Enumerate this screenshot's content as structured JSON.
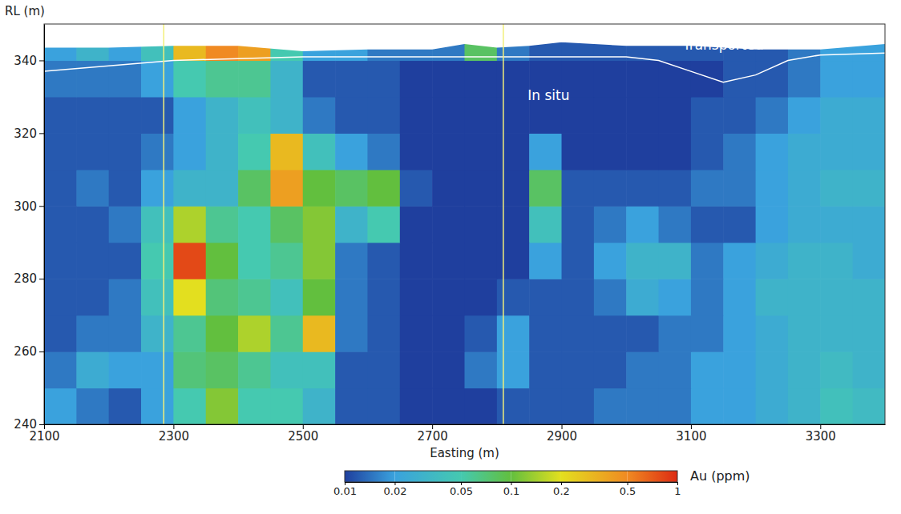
{
  "chart_data": {
    "type": "heatmap",
    "x_label": "Easting (m)",
    "y_label": "RL (m)",
    "xlim": [
      2100,
      3400
    ],
    "ylim": [
      240,
      350
    ],
    "xticks": [
      2100,
      2300,
      2500,
      2700,
      2900,
      3100,
      3300
    ],
    "yticks": [
      240,
      260,
      280,
      300,
      320,
      340
    ],
    "x": [
      2100,
      2150,
      2200,
      2250,
      2300,
      2350,
      2400,
      2450,
      2500,
      2550,
      2600,
      2650,
      2700,
      2750,
      2800,
      2850,
      2900,
      2950,
      3000,
      3050,
      3100,
      3150,
      3200,
      3250,
      3300,
      3350,
      3400
    ],
    "y": [
      240,
      250,
      260,
      270,
      280,
      290,
      300,
      310,
      320,
      330,
      340,
      345
    ],
    "z": [
      [
        0.02,
        0.015,
        0.012,
        0.02,
        0.05,
        0.12,
        0.05,
        0.05,
        0.03,
        0.012,
        0.012,
        0.01,
        0.01,
        0.01,
        0.012,
        0.012,
        0.012,
        0.015,
        0.015,
        0.015,
        0.02,
        0.02,
        0.025,
        0.03,
        0.04,
        0.035
      ],
      [
        0.015,
        0.025,
        0.02,
        0.02,
        0.07,
        0.08,
        0.06,
        0.04,
        0.04,
        0.012,
        0.012,
        0.01,
        0.01,
        0.015,
        0.02,
        0.012,
        0.012,
        0.012,
        0.015,
        0.015,
        0.02,
        0.02,
        0.025,
        0.03,
        0.035,
        0.03
      ],
      [
        0.012,
        0.015,
        0.015,
        0.03,
        0.06,
        0.1,
        0.15,
        0.06,
        0.3,
        0.015,
        0.012,
        0.01,
        0.01,
        0.012,
        0.02,
        0.012,
        0.012,
        0.012,
        0.012,
        0.015,
        0.015,
        0.02,
        0.025,
        0.03,
        0.03,
        0.03
      ],
      [
        0.012,
        0.012,
        0.015,
        0.04,
        0.2,
        0.07,
        0.06,
        0.04,
        0.1,
        0.015,
        0.012,
        0.01,
        0.01,
        0.01,
        0.012,
        0.012,
        0.012,
        0.015,
        0.025,
        0.02,
        0.015,
        0.02,
        0.03,
        0.03,
        0.03,
        0.03
      ],
      [
        0.012,
        0.012,
        0.012,
        0.05,
        0.8,
        0.1,
        0.05,
        0.06,
        0.12,
        0.015,
        0.012,
        0.01,
        0.01,
        0.01,
        0.01,
        0.02,
        0.012,
        0.02,
        0.03,
        0.03,
        0.015,
        0.02,
        0.025,
        0.03,
        0.03,
        0.025
      ],
      [
        0.012,
        0.012,
        0.015,
        0.04,
        0.15,
        0.06,
        0.05,
        0.08,
        0.12,
        0.03,
        0.05,
        0.01,
        0.01,
        0.01,
        0.01,
        0.04,
        0.012,
        0.015,
        0.02,
        0.015,
        0.012,
        0.012,
        0.02,
        0.025,
        0.025,
        0.025
      ],
      [
        0.012,
        0.015,
        0.012,
        0.02,
        0.03,
        0.03,
        0.08,
        0.4,
        0.1,
        0.08,
        0.1,
        0.012,
        0.01,
        0.01,
        0.01,
        0.08,
        0.012,
        0.012,
        0.012,
        0.012,
        0.015,
        0.015,
        0.02,
        0.025,
        0.03,
        0.03
      ],
      [
        0.012,
        0.012,
        0.012,
        0.015,
        0.02,
        0.03,
        0.05,
        0.3,
        0.04,
        0.02,
        0.015,
        0.01,
        0.01,
        0.01,
        0.01,
        0.02,
        0.01,
        0.01,
        0.01,
        0.01,
        0.012,
        0.015,
        0.02,
        0.025,
        0.025,
        0.025
      ],
      [
        0.012,
        0.012,
        0.012,
        0.012,
        0.02,
        0.03,
        0.04,
        0.03,
        0.015,
        0.012,
        0.012,
        0.01,
        0.01,
        0.01,
        0.01,
        0.01,
        0.01,
        0.01,
        0.01,
        0.01,
        0.012,
        0.012,
        0.015,
        0.02,
        0.025,
        0.025
      ],
      [
        0.015,
        0.015,
        0.015,
        0.02,
        0.05,
        0.06,
        0.06,
        0.03,
        0.012,
        0.012,
        0.012,
        0.01,
        0.01,
        0.01,
        0.01,
        0.01,
        0.01,
        0.01,
        0.01,
        0.01,
        0.01,
        0.012,
        0.012,
        0.015,
        0.02,
        0.02
      ],
      [
        0.02,
        0.03,
        0.02,
        0.04,
        0.3,
        0.5,
        0.4,
        0.05,
        0.02,
        0.02,
        0.015,
        0.015,
        0.015,
        0.08,
        0.015,
        0.012,
        0.012,
        0.012,
        0.012,
        0.012,
        0.012,
        0.012,
        0.012,
        0.015,
        0.02,
        0.02
      ]
    ],
    "surface": {
      "x": [
        2100,
        2200,
        2300,
        2400,
        2500,
        2600,
        2700,
        2750,
        2800,
        2850,
        2900,
        3000,
        3100,
        3200,
        3300,
        3400
      ],
      "y": [
        343.5,
        343.5,
        344,
        344,
        342.5,
        343,
        343,
        344.5,
        343.5,
        344,
        345,
        344,
        344,
        343,
        343,
        344.5
      ]
    },
    "boundary": {
      "x": [
        2100,
        2200,
        2300,
        2400,
        2500,
        2600,
        2700,
        2800,
        2900,
        3000,
        3050,
        3100,
        3150,
        3200,
        3250,
        3300,
        3400
      ],
      "y": [
        337,
        338.5,
        340,
        340.5,
        341,
        341,
        341,
        341,
        341,
        341,
        340,
        337,
        334,
        336,
        340,
        341.5,
        342
      ]
    },
    "vertical_lines": [
      2285,
      2810
    ],
    "annotations": [
      {
        "text": "Transported",
        "x": 3150,
        "y": 343
      },
      {
        "text": "In situ",
        "x": 2880,
        "y": 329
      }
    ],
    "colorbar": {
      "label": "Au (ppm)",
      "range": [
        0.01,
        1
      ],
      "ticks": [
        0.01,
        0.02,
        0.05,
        0.1,
        0.2,
        0.5,
        1
      ],
      "colors": [
        "#1f3f9e",
        "#3aa2dd",
        "#45c9b0",
        "#62bf3e",
        "#e3df1f",
        "#f08a22",
        "#dd2a12"
      ]
    }
  }
}
